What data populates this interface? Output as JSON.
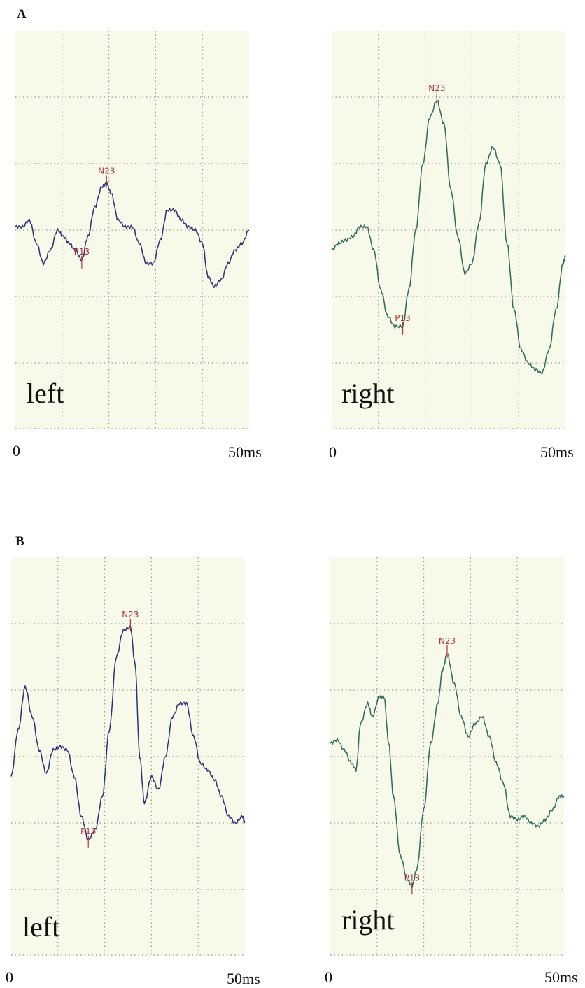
{
  "figure": {
    "section_labels": [
      "A",
      "B"
    ]
  },
  "chart_data": [
    {
      "type": "line",
      "group": "A",
      "side_label": "left",
      "x_tick_labels": [
        "0",
        "50ms"
      ],
      "xlim": [
        0,
        50
      ],
      "ylim": [
        -3,
        3
      ],
      "grid": true,
      "line_color": "#2d2f7a",
      "peaks": [
        {
          "label": "P13",
          "x": 14.2,
          "y": -0.45
        },
        {
          "label": "N23",
          "x": 19.5,
          "y": 0.7
        }
      ],
      "series": [
        {
          "x": [
            0,
            1.5,
            3,
            4.5,
            6,
            7.5,
            9,
            10.3,
            11.5,
            12.8,
            14.2,
            15.5,
            17,
            18.5,
            19.5,
            20.5,
            22,
            23.5,
            25,
            26.5,
            28,
            29.5,
            31,
            32.5,
            34,
            35.5,
            37,
            38.5,
            40,
            41.2,
            42.5,
            44,
            45.5,
            47,
            48.5,
            50
          ],
          "y": [
            0.05,
            0.05,
            0.15,
            -0.2,
            -0.5,
            -0.3,
            0,
            -0.1,
            -0.2,
            -0.3,
            -0.45,
            -0.1,
            0.35,
            0.65,
            0.7,
            0.55,
            0.15,
            0.05,
            0.05,
            -0.2,
            -0.5,
            -0.5,
            -0.15,
            0.3,
            0.3,
            0.15,
            0.05,
            0,
            -0.2,
            -0.7,
            -0.85,
            -0.75,
            -0.5,
            -0.3,
            -0.2,
            0
          ]
        }
      ]
    },
    {
      "type": "line",
      "group": "A",
      "side_label": "right",
      "x_tick_labels": [
        "0",
        "50ms"
      ],
      "xlim": [
        0,
        50
      ],
      "ylim": [
        -3,
        3
      ],
      "grid": true,
      "line_color": "#2e6a5e",
      "peaks": [
        {
          "label": "P13",
          "x": 15.2,
          "y": -1.45
        },
        {
          "label": "N23",
          "x": 22.5,
          "y": 1.95
        }
      ],
      "series": [
        {
          "x": [
            0,
            1.5,
            3,
            4.5,
            6,
            7.5,
            9,
            10.5,
            12,
            13.5,
            15.2,
            16.5,
            18,
            19.5,
            21,
            22.5,
            24,
            25.5,
            27,
            28.5,
            30,
            31.5,
            33,
            34.5,
            36,
            37.5,
            39,
            40.5,
            42,
            43.5,
            45,
            46.5,
            48,
            49.5,
            50
          ],
          "y": [
            -0.3,
            -0.2,
            -0.15,
            -0.1,
            0.05,
            0.05,
            -0.3,
            -0.9,
            -1.3,
            -1.45,
            -1.45,
            -0.9,
            0,
            1,
            1.7,
            1.95,
            1.6,
            0.6,
            -0.1,
            -0.65,
            -0.5,
            0.1,
            1,
            1.25,
            1,
            -0.2,
            -1.2,
            -1.8,
            -2.0,
            -2.1,
            -2.15,
            -1.8,
            -1.2,
            -0.5,
            -0.4
          ]
        }
      ]
    },
    {
      "type": "line",
      "group": "B",
      "side_label": "left",
      "x_tick_labels": [
        "0",
        "50ms"
      ],
      "xlim": [
        0,
        50
      ],
      "ylim": [
        -3,
        3
      ],
      "grid": true,
      "line_color": "#2d2f7a",
      "peaks": [
        {
          "label": "P13",
          "x": 16.5,
          "y": -1.25
        },
        {
          "label": "N23",
          "x": 25.5,
          "y": 1.95
        }
      ],
      "series": [
        {
          "x": [
            0,
            1.5,
            3,
            4.5,
            6,
            7.5,
            9,
            10.5,
            12,
            13.5,
            15,
            16.5,
            18,
            19.5,
            21,
            22.5,
            24,
            25.5,
            26.5,
            27.5,
            28.5,
            30,
            31.5,
            33,
            34.5,
            36,
            37.5,
            39,
            40.5,
            42,
            43.5,
            45,
            46.5,
            48,
            49.5,
            50
          ],
          "y": [
            -0.3,
            0.4,
            1.05,
            0.6,
            0.1,
            -0.25,
            0.1,
            0.15,
            0.1,
            -0.3,
            -0.9,
            -1.25,
            -1.1,
            -0.6,
            0.4,
            1.5,
            1.9,
            1.95,
            1.4,
            0,
            -0.7,
            -0.3,
            -0.5,
            0,
            0.6,
            0.8,
            0.8,
            0.3,
            -0.1,
            -0.2,
            -0.35,
            -0.6,
            -0.9,
            -1.0,
            -0.9,
            -1.0
          ]
        }
      ]
    },
    {
      "type": "line",
      "group": "B",
      "side_label": "right",
      "x_tick_labels": [
        "0",
        "50ms"
      ],
      "xlim": [
        0,
        50
      ],
      "ylim": [
        -3,
        3
      ],
      "grid": true,
      "line_color": "#2e6a5e",
      "peaks": [
        {
          "label": "P13",
          "x": 17.5,
          "y": -1.95
        },
        {
          "label": "N23",
          "x": 25,
          "y": 1.55
        }
      ],
      "series": [
        {
          "x": [
            0,
            1.5,
            3,
            4.5,
            5.5,
            6.5,
            8,
            9,
            10.5,
            11.5,
            12.5,
            13.5,
            15,
            16.5,
            17.5,
            18.5,
            20,
            21.5,
            23,
            24,
            25,
            26.5,
            28,
            29.5,
            31,
            32.5,
            34,
            35.5,
            37,
            38.5,
            40,
            41.5,
            43,
            44.5,
            46,
            47.5,
            49,
            50
          ],
          "y": [
            0.2,
            0.25,
            0.1,
            -0.1,
            -0.2,
            0.5,
            0.8,
            0.6,
            0.9,
            0.9,
            0.2,
            -0.6,
            -1.5,
            -1.85,
            -1.95,
            -1.7,
            -0.8,
            0.2,
            0.8,
            1.3,
            1.55,
            1.1,
            0.6,
            0.3,
            0.5,
            0.6,
            0.3,
            -0.1,
            -0.4,
            -0.9,
            -0.95,
            -0.9,
            -1.0,
            -1.05,
            -0.95,
            -0.8,
            -0.6,
            -0.6
          ]
        }
      ]
    }
  ]
}
